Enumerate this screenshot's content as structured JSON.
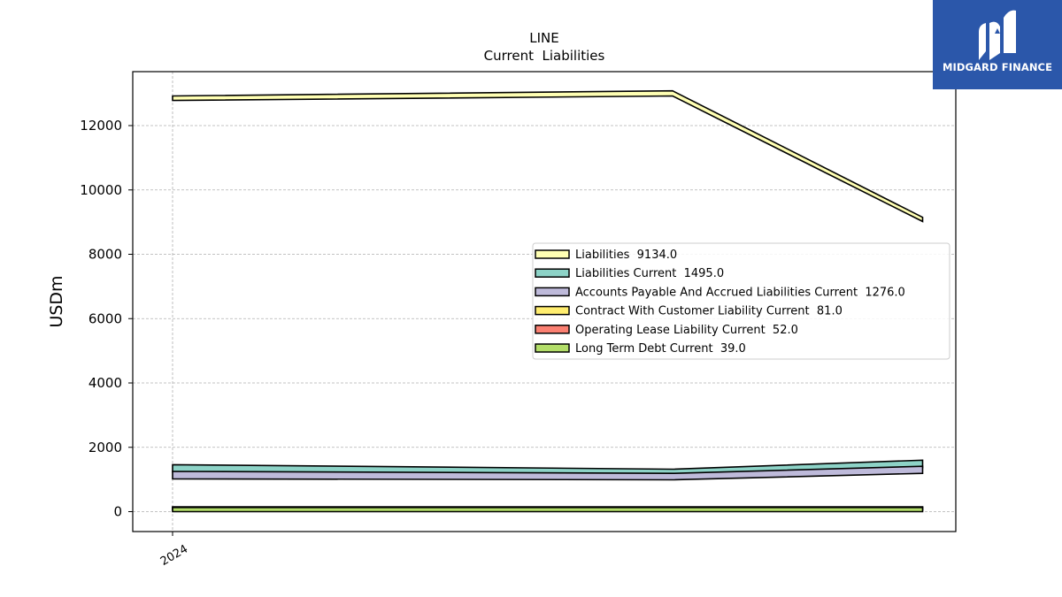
{
  "brand": {
    "name": "MIDGARD FINANCE",
    "logo_icon": "midgard-logo-icon",
    "background": "#2b57aa"
  },
  "chart_data": {
    "type": "area",
    "chart_type_label": "LINE",
    "title": "Current  Liabilities",
    "xlabel": "",
    "ylabel": "USDm",
    "xtick_labels": [
      "2024"
    ],
    "ylim": [
      -650,
      13650
    ],
    "yticks": [
      0,
      2000,
      4000,
      6000,
      8000,
      10000,
      12000
    ],
    "grid": true,
    "legend_position": "center-right",
    "x": [
      0,
      1,
      1.5
    ],
    "series": [
      {
        "name": "Liabilities",
        "legend_value": "9134.0",
        "color": "#ffffb3",
        "low": [
          12780,
          12920,
          9020
        ],
        "high": [
          12920,
          13080,
          9150
        ]
      },
      {
        "name": "Liabilities Current",
        "legend_value": "1495.0",
        "color": "#8dd3c7",
        "low": [
          1240,
          1130,
          1370
        ],
        "high": [
          1460,
          1320,
          1600
        ]
      },
      {
        "name": "Accounts Payable And Accrued Liabilities Current",
        "legend_value": "1276.0",
        "color": "#bebada",
        "low": [
          1020,
          990,
          1190
        ],
        "high": [
          1250,
          1190,
          1410
        ]
      },
      {
        "name": "Contract With Customer Liability Current",
        "legend_value": "81.0",
        "color": "#ffed6f",
        "low": [
          70,
          70,
          70
        ],
        "high": [
          150,
          150,
          150
        ]
      },
      {
        "name": "Operating Lease Liability Current",
        "legend_value": "52.0",
        "color": "#fb8072",
        "low": [
          50,
          50,
          50
        ],
        "high": [
          140,
          140,
          140
        ]
      },
      {
        "name": "Long Term Debt Current",
        "legend_value": "39.0",
        "color": "#b3de69",
        "low": [
          0,
          0,
          0
        ],
        "high": [
          130,
          130,
          130
        ]
      }
    ]
  }
}
